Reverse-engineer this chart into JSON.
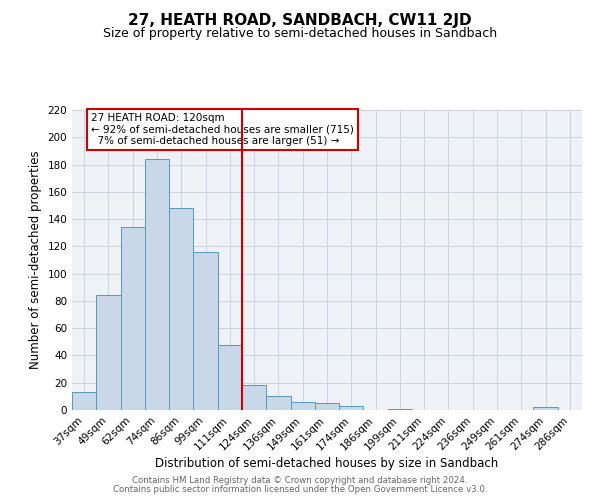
{
  "title": "27, HEATH ROAD, SANDBACH, CW11 2JD",
  "subtitle": "Size of property relative to semi-detached houses in Sandbach",
  "xlabel": "Distribution of semi-detached houses by size in Sandbach",
  "ylabel": "Number of semi-detached properties",
  "footer_line1": "Contains HM Land Registry data © Crown copyright and database right 2024.",
  "footer_line2": "Contains public sector information licensed under the Open Government Licence v3.0.",
  "bar_labels": [
    "37sqm",
    "49sqm",
    "62sqm",
    "74sqm",
    "86sqm",
    "99sqm",
    "111sqm",
    "124sqm",
    "136sqm",
    "149sqm",
    "161sqm",
    "174sqm",
    "186sqm",
    "199sqm",
    "211sqm",
    "224sqm",
    "236sqm",
    "249sqm",
    "261sqm",
    "274sqm",
    "286sqm"
  ],
  "bar_values": [
    13,
    84,
    134,
    184,
    148,
    116,
    48,
    18,
    10,
    6,
    5,
    3,
    0,
    1,
    0,
    0,
    0,
    0,
    0,
    2,
    0
  ],
  "bar_color": "#c8d8e8",
  "bar_edge_color": "#5599bb",
  "vline_position": 7,
  "property_label": "27 HEATH ROAD: 120sqm",
  "smaller_pct": "92%",
  "smaller_count": "715",
  "larger_pct": "7%",
  "larger_count": "51",
  "vline_color": "#cc0000",
  "annotation_box_color": "#cc0000",
  "ylim": [
    0,
    220
  ],
  "yticks": [
    0,
    20,
    40,
    60,
    80,
    100,
    120,
    140,
    160,
    180,
    200,
    220
  ],
  "grid_color": "#c8d4e0",
  "background_color": "#eef2f7",
  "title_fontsize": 11,
  "subtitle_fontsize": 9,
  "axis_label_fontsize": 8.5,
  "tick_fontsize": 7.5,
  "annotation_fontsize": 7.5,
  "footer_fontsize": 6.2
}
